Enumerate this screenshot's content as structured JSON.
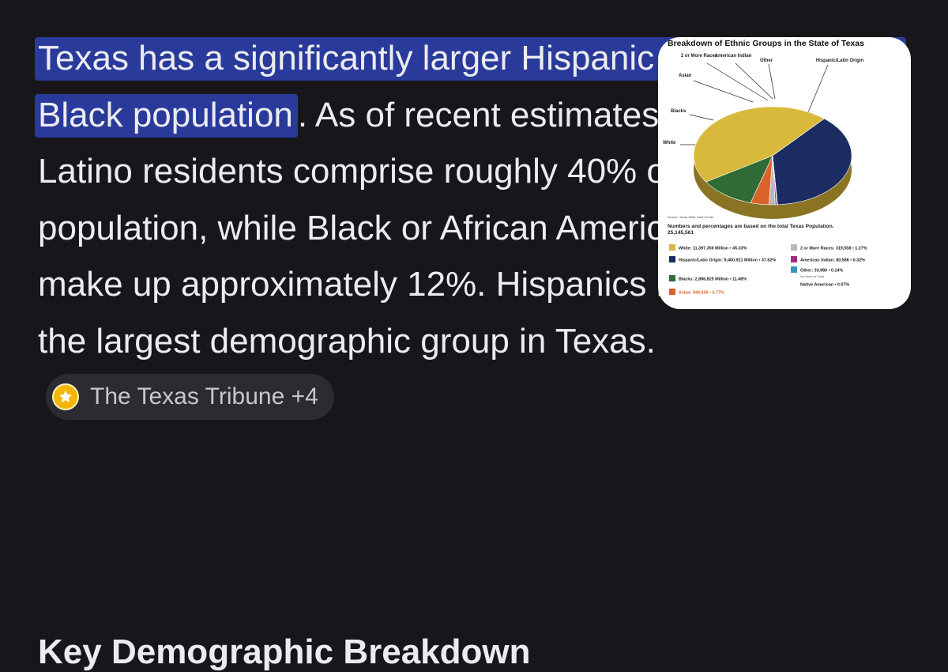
{
  "answer": {
    "highlight": "Texas has a significantly larger Hispanic population than Black population",
    "body": ". As of recent estimates, Hispanic or Latino residents comprise roughly 40% of the state's population, while Black or African American residents make up approximately 12%. Hispanics have become the largest demographic group in Texas."
  },
  "source_chip": {
    "label": "The Texas Tribune +4",
    "icon": "star-icon",
    "color": "#f2b705"
  },
  "next_heading": "Key Demographic Breakdown",
  "thumbnail": {
    "title": "Breakdown of Ethnic Groups in the State of Texas",
    "callouts": {
      "two_or_more": "2 or More Races",
      "american_indian": "American Indian",
      "other": "Other",
      "hispanic": "Hispanic/Latin Origin",
      "asian": "Asian",
      "blacks": "Blacks",
      "white": "White"
    },
    "source": "Source: Texas State Data Center",
    "note": "Numbers and percentages are based on the total Texas Population. 25,145,561",
    "legend": [
      {
        "label": "White: 11,397,356 Million • 45.33%",
        "color": "#d9b93c"
      },
      {
        "label": "Hispanic/Latin Origin: 9,460,921 Million • 37.62%",
        "color": "#1b2c63"
      },
      {
        "label": "Blacks: 2,886,825 Million • 11.48%",
        "color": "#2e6b35"
      },
      {
        "label": "Asian: 948,426 • 3.77%",
        "color": "#d9622b"
      },
      {
        "label": "2 or More Races: 319,558 • 1.27%",
        "color": "#b9b9b9"
      },
      {
        "label": "American Indian: 80,586 • 0.32%",
        "color": "#a8267a"
      },
      {
        "label": "Other: 33,980 • 0.14%",
        "color": "#3a8fc2"
      },
      {
        "label": "Native American • 0.07%",
        "color": "#ffffff"
      }
    ],
    "legend_note": "Not show on Chart"
  },
  "colors": {
    "background": "#16161b",
    "highlight": "#2a3a9a",
    "text": "#ececf0"
  }
}
